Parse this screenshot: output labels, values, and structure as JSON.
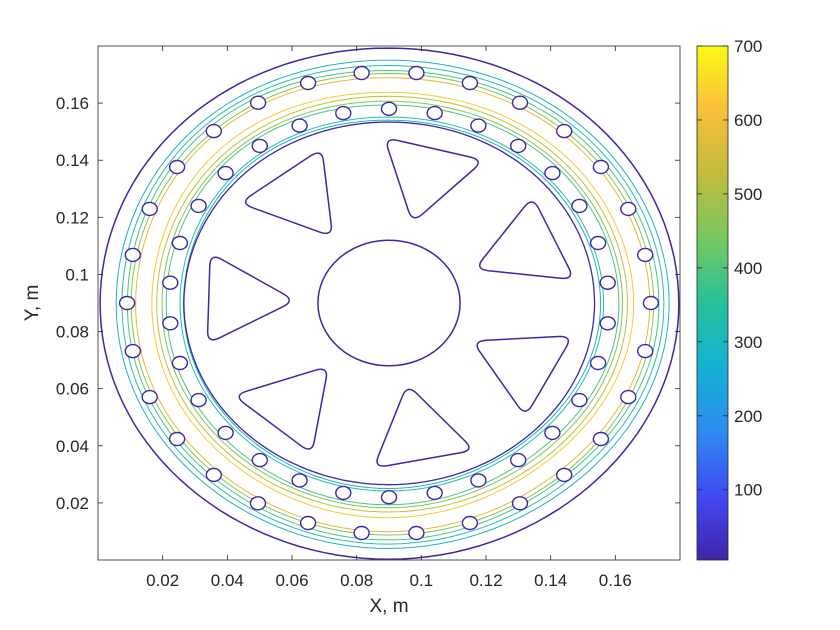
{
  "chart_data": {
    "type": "contour",
    "title": "",
    "xlabel": "X, m",
    "ylabel": "Y, m",
    "xlim": [
      0.0,
      0.18
    ],
    "ylim": [
      0.0,
      0.18
    ],
    "x_ticks": [
      "0.02",
      "0.04",
      "0.06",
      "0.08",
      "0.1",
      "0.12",
      "0.14",
      "0.16"
    ],
    "y_ticks": [
      "0.02",
      "0.04",
      "0.06",
      "0.08",
      "0.1",
      "0.12",
      "0.14",
      "0.16"
    ],
    "colorbar": {
      "colormap": "parula",
      "range": [
        5,
        700
      ],
      "ticks": [
        "100",
        "200",
        "300",
        "400",
        "500",
        "600",
        "700"
      ]
    },
    "contour_levels": [
      {
        "value": 50,
        "color": "#3e26a8"
      },
      {
        "value": 350,
        "color": "#1fb3c0"
      },
      {
        "value": 400,
        "color": "#2dbca6"
      },
      {
        "value": 450,
        "color": "#4bc484"
      },
      {
        "value": 500,
        "color": "#7fc858"
      },
      {
        "value": 550,
        "color": "#b9c334"
      },
      {
        "value": 600,
        "color": "#e1bb37"
      },
      {
        "value": 650,
        "color": "#f9ca2d"
      }
    ],
    "geometry": {
      "center": [
        0.09,
        0.09
      ],
      "outer_radius": 0.0895,
      "hub_radius": 0.022,
      "spokes": 7,
      "bolt_rings": [
        {
          "radius": 0.081,
          "count": 30
        },
        {
          "radius": 0.068,
          "count": 30
        }
      ]
    }
  }
}
